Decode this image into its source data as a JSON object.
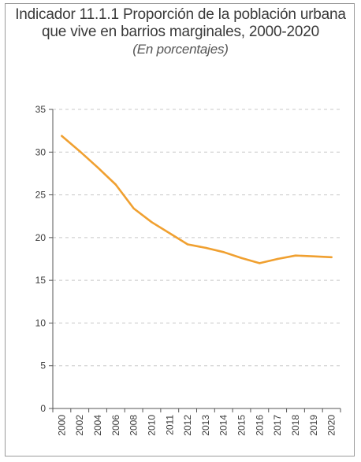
{
  "chart_data": {
    "type": "line",
    "title_line1": "Indicador 11.1.1 Proporción de la población urbana",
    "title_line2": "que vive en barrios marginales, 2000-2020",
    "subtitle": "(En porcentajes)",
    "x": [
      "2000",
      "2002",
      "2004",
      "2006",
      "2008",
      "2010",
      "2011",
      "2012",
      "2013",
      "2014",
      "2015",
      "2016",
      "2017",
      "2018",
      "2019",
      "2020"
    ],
    "values": [
      31.9,
      30.1,
      28.2,
      26.2,
      23.4,
      21.8,
      20.5,
      19.2,
      18.8,
      18.3,
      17.6,
      17.0,
      17.5,
      17.9,
      17.8,
      17.7
    ],
    "ylim": [
      0,
      35
    ],
    "yticks": [
      "0",
      "5",
      "10",
      "15",
      "20",
      "25",
      "30",
      "35"
    ],
    "ytick_values": [
      0,
      5,
      10,
      15,
      20,
      25,
      30,
      35
    ],
    "grid": true,
    "line_color": "#f0a030",
    "grid_color": "#c8c8c8"
  }
}
